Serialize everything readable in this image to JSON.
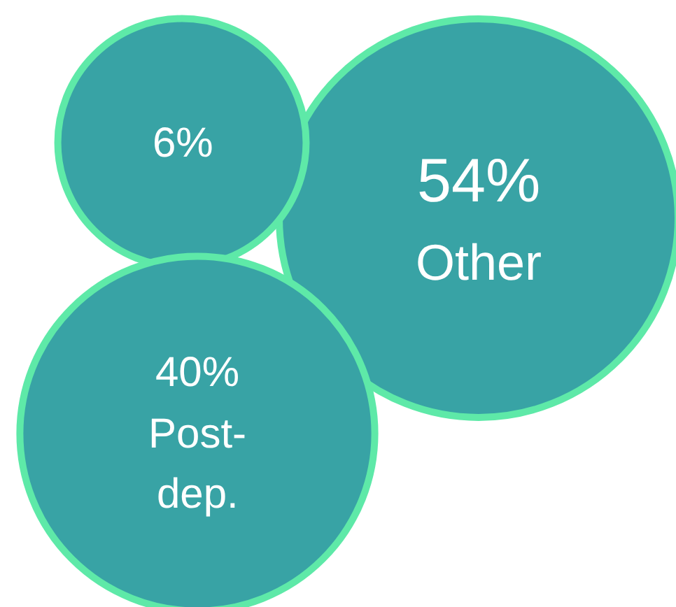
{
  "chart_data": {
    "type": "other",
    "categories": [
      null,
      "Other",
      "Post-dep."
    ],
    "values": [
      6,
      54,
      40
    ],
    "value_labels": [
      "6%",
      "54%",
      "40%"
    ],
    "color": "#38a3a5"
  }
}
